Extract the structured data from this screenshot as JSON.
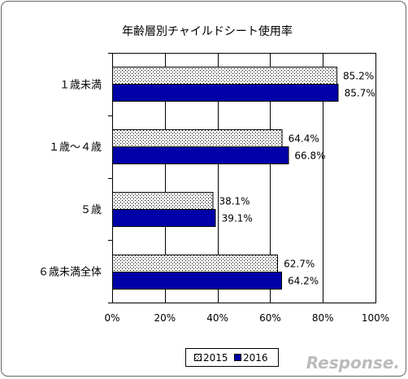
{
  "chart_data": {
    "type": "bar",
    "orientation": "horizontal",
    "title": "年齢層別チャイルドシート使用率",
    "categories": [
      "１歳未満",
      "１歳～４歳",
      "５歳",
      "６歳未満全体"
    ],
    "series": [
      {
        "name": "2015",
        "values": [
          85.2,
          64.4,
          38.1,
          62.7
        ],
        "data_labels": [
          "85.2%",
          "64.4%",
          "38.1%",
          "62.7%"
        ],
        "color": "#ffffff",
        "dot_color": "#000000"
      },
      {
        "name": "2016",
        "values": [
          85.7,
          66.8,
          39.1,
          64.2
        ],
        "data_labels": [
          "85.7%",
          "66.8%",
          "39.1%",
          "64.2%"
        ],
        "color": "#0000a8"
      }
    ],
    "xlim": [
      0,
      100
    ],
    "xticks": [
      0,
      20,
      40,
      60,
      80,
      100
    ],
    "xtick_labels": [
      "0%",
      "20%",
      "40%",
      "60%",
      "80%",
      "100%"
    ],
    "xlabel": "",
    "ylabel": "",
    "grid": true,
    "legend": "bottom"
  },
  "watermark": "Response."
}
